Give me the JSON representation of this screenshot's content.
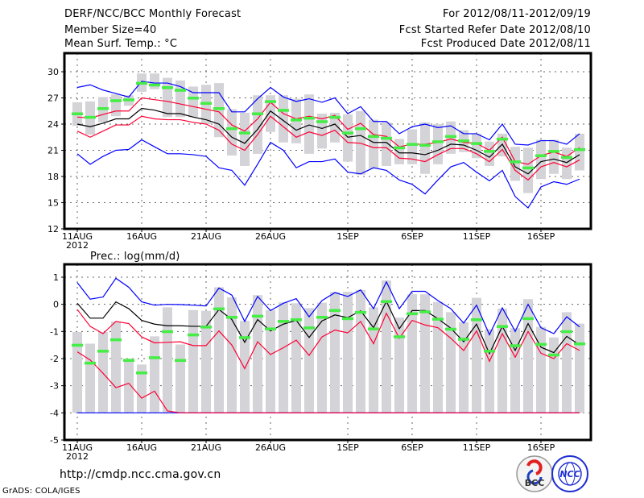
{
  "header": {
    "title": "DERF/NCC/BCC Monthly Forecast",
    "member_size": "Member Size=40",
    "variable": "Mean Surf. Temp.: °C",
    "for_period": "For 2012/08/11-2012/09/19",
    "fcst_started": "Fcst Started Refer Date 2012/08/10",
    "fcst_produced": "Fcst Produced Date 2012/08/11"
  },
  "footer": {
    "url": "http://cmdp.ncc.cma.gov.cn",
    "grads": "GrADS: COLA/IGES",
    "logo_bcc": "BCC",
    "logo_ncc": "NCC"
  },
  "colors": {
    "max_min": "#0000ff",
    "spread": "#ff0033",
    "mean": "#000000",
    "obs": "#44ee44",
    "box": "#d3d3d8"
  },
  "chart_data": [
    {
      "type": "line",
      "title": "Mean Surf. Temp.: °C",
      "ylim": [
        12,
        30
      ],
      "yticks": [
        12,
        15,
        18,
        21,
        24,
        27,
        30
      ],
      "ytick_labels": [
        "12",
        "15",
        "18",
        "21",
        "24",
        "27",
        "30"
      ],
      "xtick_days": [
        0,
        5,
        10,
        15,
        21,
        26,
        31,
        36
      ],
      "xtick_labels": [
        "11AUG",
        "16AUG",
        "21AUG",
        "26AUG",
        "1SEP",
        "6SEP",
        "11SEP",
        "16SEP"
      ],
      "year_label": "2012",
      "grid": true,
      "series": [
        {
          "name": "max",
          "color": "#0000ff",
          "values": [
            28.2,
            28.5,
            27.9,
            27.5,
            27.1,
            28.9,
            28.7,
            28.7,
            28.3,
            27.6,
            27.6,
            27.6,
            25.4,
            25.4,
            26.9,
            28.2,
            27.1,
            26.6,
            26.9,
            26.5,
            27.0,
            25.2,
            26.0,
            24.3,
            24.3,
            22.9,
            23.7,
            24.0,
            23.6,
            23.8,
            22.9,
            22.9,
            22.2,
            24.0,
            21.7,
            21.6,
            22.1,
            22.1,
            21.7,
            22.9
          ]
        },
        {
          "name": "upper",
          "color": "#ff0033",
          "values": [
            24.8,
            24.7,
            25.1,
            25.5,
            25.5,
            27.0,
            26.8,
            26.6,
            26.3,
            26.0,
            25.7,
            25.4,
            23.9,
            23.2,
            24.6,
            26.5,
            25.2,
            24.6,
            24.9,
            24.6,
            25.0,
            23.4,
            24.1,
            22.8,
            22.6,
            21.4,
            21.7,
            21.7,
            21.9,
            22.3,
            21.9,
            21.8,
            21.0,
            22.5,
            19.7,
            19.4,
            20.4,
            20.8,
            20.3,
            21.3
          ]
        },
        {
          "name": "mean",
          "color": "#000000",
          "values": [
            24.0,
            23.7,
            24.1,
            24.6,
            24.6,
            25.8,
            25.6,
            25.2,
            25.2,
            24.8,
            24.5,
            24.0,
            22.5,
            21.8,
            23.4,
            25.5,
            24.4,
            23.3,
            23.9,
            23.5,
            24.0,
            22.5,
            22.7,
            21.9,
            21.9,
            20.7,
            20.7,
            20.5,
            21.0,
            21.7,
            21.6,
            21.0,
            20.2,
            21.7,
            19.1,
            18.3,
            19.7,
            20.0,
            19.6,
            20.5
          ]
        },
        {
          "name": "lower",
          "color": "#ff0033",
          "values": [
            23.2,
            22.5,
            23.2,
            23.9,
            23.9,
            24.9,
            24.6,
            24.5,
            24.5,
            24.2,
            24.0,
            23.3,
            21.7,
            21.0,
            22.8,
            24.9,
            23.7,
            22.5,
            23.1,
            22.7,
            23.3,
            21.9,
            21.8,
            21.3,
            21.3,
            20.1,
            20.0,
            19.7,
            20.5,
            21.2,
            21.2,
            20.6,
            19.7,
            21.1,
            18.7,
            17.6,
            19.1,
            19.6,
            19.1,
            19.9
          ]
        },
        {
          "name": "min",
          "color": "#0000ff",
          "values": [
            20.6,
            19.4,
            20.3,
            21.0,
            21.1,
            22.2,
            21.4,
            20.6,
            20.6,
            20.5,
            20.3,
            19.0,
            18.7,
            17.0,
            19.4,
            21.9,
            21.0,
            19.0,
            19.7,
            19.7,
            20.0,
            18.5,
            18.3,
            19.0,
            18.7,
            17.6,
            17.1,
            16.0,
            17.6,
            19.1,
            19.6,
            18.5,
            17.5,
            18.7,
            15.7,
            14.4,
            16.8,
            17.4,
            17.1,
            17.7
          ]
        }
      ],
      "observed": [
        25.2,
        24.8,
        25.8,
        26.7,
        26.8,
        28.7,
        28.5,
        28.2,
        27.9,
        27.0,
        26.4,
        25.8,
        23.5,
        23.0,
        25.2,
        26.6,
        25.6,
        24.5,
        24.7,
        24.3,
        24.8,
        23.0,
        23.5,
        22.6,
        22.4,
        21.3,
        21.7,
        21.6,
        22.0,
        22.6,
        22.1,
        21.8,
        20.9,
        22.3,
        19.7,
        19.0,
        20.4,
        20.9,
        20.2,
        21.1
      ],
      "box_high": [
        26.5,
        26.6,
        27.1,
        27.4,
        27.3,
        29.8,
        29.8,
        29.3,
        29.0,
        28.3,
        28.5,
        28.7,
        25.7,
        25.3,
        27.3,
        27.3,
        27.3,
        26.9,
        27.4,
        25.2,
        25.3,
        25.1,
        25.5,
        24.5,
        24.2,
        22.3,
        23.4,
        24.2,
        24.0,
        24.3,
        23.3,
        22.9,
        22.0,
        22.9,
        21.4,
        21.3,
        22.2,
        22.2,
        21.3,
        22.9
      ],
      "box_low": [
        23.8,
        22.8,
        24.2,
        24.9,
        26.1,
        27.7,
        28.0,
        24.8,
        24.8,
        24.8,
        24.0,
        22.5,
        20.4,
        19.2,
        20.6,
        23.1,
        21.9,
        21.8,
        20.6,
        21.2,
        21.9,
        19.7,
        18.2,
        18.9,
        19.2,
        19.4,
        19.4,
        18.3,
        19.4,
        20.6,
        20.8,
        20.1,
        19.2,
        20.3,
        17.5,
        16.1,
        17.7,
        18.3,
        17.7,
        18.7
      ]
    },
    {
      "type": "line",
      "title": "Prec.: log(mm/d)",
      "ylim": [
        -5,
        1
      ],
      "yticks": [
        -5,
        -4,
        -3,
        -2,
        -1,
        0,
        1
      ],
      "ytick_labels": [
        "-5",
        "-4",
        "-3",
        "-2",
        "-1",
        "0",
        "1"
      ],
      "xtick_days": [
        0,
        5,
        10,
        15,
        21,
        26,
        31,
        36
      ],
      "xtick_labels": [
        "11AUG",
        "16AUG",
        "21AUG",
        "26AUG",
        "1SEP",
        "6SEP",
        "11SEP",
        "16SEP"
      ],
      "year_label": "2012",
      "grid": true,
      "series": [
        {
          "name": "max",
          "color": "#0000ff",
          "values": [
            0.8,
            0.19,
            0.27,
            0.96,
            0.63,
            0.09,
            -0.03,
            0.0,
            -0.01,
            -0.03,
            -0.06,
            0.6,
            0.34,
            -0.63,
            0.29,
            -0.23,
            0.04,
            0.21,
            -0.46,
            0.14,
            0.43,
            0.29,
            0.53,
            -0.16,
            0.83,
            -0.16,
            0.48,
            0.48,
            0.14,
            -0.16,
            -0.69,
            -0.03,
            -1.12,
            -0.13,
            -1.0,
            0.0,
            -0.86,
            -1.08,
            -0.46,
            -0.83
          ]
        },
        {
          "name": "upper",
          "color": "#ff0033",
          "values": [
            -0.19,
            -0.81,
            -1.08,
            -0.63,
            -0.71,
            -1.2,
            -1.42,
            -1.4,
            -1.38,
            -1.52,
            -1.52,
            -0.98,
            -1.5,
            -2.37,
            -1.38,
            -1.85,
            -1.6,
            -1.32,
            -1.88,
            -1.2,
            -0.95,
            -1.05,
            -0.63,
            -1.45,
            -0.33,
            -1.25,
            -0.59,
            -0.76,
            -0.86,
            -1.25,
            -1.7,
            -0.98,
            -2.1,
            -1.08,
            -1.95,
            -1.0,
            -1.8,
            -2.0,
            -1.45,
            -1.7
          ]
        },
        {
          "name": "mean",
          "color": "#000000",
          "values": [
            0.04,
            -0.51,
            -0.51,
            0.09,
            -0.16,
            -0.59,
            -0.73,
            -0.79,
            -0.79,
            -0.81,
            -0.81,
            -0.19,
            -0.56,
            -1.4,
            -0.56,
            -0.98,
            -0.73,
            -0.59,
            -1.22,
            -0.61,
            -0.39,
            -0.49,
            -0.24,
            -0.86,
            0.11,
            -0.9,
            -0.23,
            -0.23,
            -0.53,
            -0.88,
            -1.38,
            -0.73,
            -1.82,
            -0.81,
            -1.7,
            -0.71,
            -1.58,
            -1.78,
            -1.18,
            -1.5
          ]
        },
        {
          "name": "min",
          "color": "#0000ff",
          "values": [
            -4,
            -4,
            -4,
            -4,
            -4,
            -4,
            -4,
            -4,
            -4,
            -4,
            -4,
            -4,
            -4,
            -4,
            -4,
            -4,
            -4,
            -4,
            -4,
            -4,
            -4,
            -4,
            -4,
            -4,
            -4,
            -4,
            -4,
            -4,
            -4,
            -4,
            -4,
            -4,
            -4,
            -4,
            -4,
            -4,
            -4,
            -4,
            -4,
            -4
          ]
        },
        {
          "name": "lower",
          "color": "#ff0033",
          "values": [
            -1.75,
            -2.05,
            -2.54,
            -3.07,
            -2.91,
            -3.46,
            -3.2,
            -3.93,
            -4,
            -4,
            -4,
            -4,
            -4,
            -4,
            -4,
            -4,
            -4,
            -4,
            -4,
            -4,
            -4,
            -4,
            -4,
            -4,
            -4,
            -4,
            -4,
            -4,
            -4,
            -4,
            -4,
            -4,
            -4,
            -4,
            -4,
            -4,
            -4,
            -4,
            -4,
            -4
          ]
        }
      ],
      "observed": [
        -1.5,
        -2.16,
        -1.72,
        -1.3,
        -2.06,
        -2.52,
        -1.96,
        -1.0,
        -2.06,
        -1.12,
        -0.83,
        -0.16,
        -0.47,
        -1.22,
        -0.43,
        -0.9,
        -0.62,
        -0.56,
        -0.86,
        -0.47,
        -0.22,
        -0.52,
        -0.29,
        -0.9,
        0.11,
        -1.19,
        -0.34,
        -0.27,
        -0.54,
        -0.91,
        -1.28,
        -0.56,
        -1.72,
        -0.81,
        -1.52,
        -0.52,
        -1.47,
        -1.86,
        -1.0,
        -1.45
      ],
      "box_high": [
        -1.02,
        -1.45,
        -1.02,
        -0.63,
        -2.0,
        -2.22,
        -1.18,
        -0.11,
        -1.48,
        -0.21,
        -0.24,
        0.63,
        0.26,
        -0.61,
        0.34,
        -0.21,
        0.07,
        0.04,
        -0.14,
        0.06,
        0.46,
        0.46,
        0.53,
        -0.11,
        0.88,
        -0.49,
        0.37,
        0.37,
        0.09,
        -0.29,
        -0.66,
        0.24,
        -0.92,
        -0.16,
        -0.88,
        0.19,
        -0.83,
        -1.22,
        -0.29,
        -0.71
      ],
      "box_low": [
        -4,
        -4,
        -4,
        -4,
        -4,
        -4,
        -4,
        -4,
        -4,
        -4,
        -4,
        -4,
        -4,
        -4,
        -4,
        -4,
        -4,
        -4,
        -4,
        -4,
        -4,
        -4,
        -4,
        -4,
        -4,
        -4,
        -4,
        -4,
        -4,
        -4,
        -4,
        -4,
        -4,
        -4,
        -4,
        -4,
        -4,
        -4,
        -4,
        -4
      ]
    }
  ]
}
